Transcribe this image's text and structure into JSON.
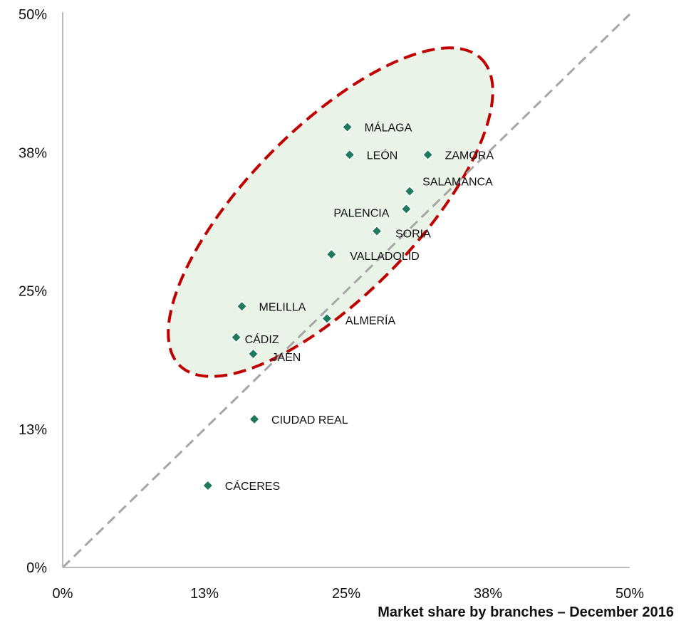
{
  "chart_data": {
    "type": "scatter",
    "title": "",
    "xlabel": "Market share by  branches – December  2016",
    "ylabel": "",
    "xlim": [
      0,
      0.5
    ],
    "ylim": [
      0,
      0.5
    ],
    "x_ticks": [
      "0%",
      "13%",
      "25%",
      "38%",
      "50%"
    ],
    "y_ticks": [
      "0%",
      "13%",
      "25%",
      "38%",
      "50%"
    ],
    "grid": false,
    "legend": "none",
    "reference_line": {
      "from": [
        0,
        0
      ],
      "to": [
        0.5,
        0.5
      ],
      "style": "dashed",
      "color": "#a6a6a6"
    },
    "highlight_ellipse": {
      "fill": "#e9f3e8",
      "stroke": "#c00000",
      "style": "dashed"
    },
    "marker_color": "#1e7a5a",
    "points": [
      {
        "label": "MÁLAGA",
        "x": 0.251,
        "y": 0.398
      },
      {
        "label": "LEÓN",
        "x": 0.253,
        "y": 0.373
      },
      {
        "label": "ZAMORA",
        "x": 0.322,
        "y": 0.373
      },
      {
        "label": "SALAMANCA",
        "x": 0.306,
        "y": 0.34
      },
      {
        "label": "PALENCIA",
        "x": 0.303,
        "y": 0.324
      },
      {
        "label": "SORIA",
        "x": 0.277,
        "y": 0.304
      },
      {
        "label": "VALLADOLID",
        "x": 0.237,
        "y": 0.283
      },
      {
        "label": "MELILLA",
        "x": 0.158,
        "y": 0.236
      },
      {
        "label": "ALMERÍA",
        "x": 0.233,
        "y": 0.225
      },
      {
        "label": "CÁDIZ",
        "x": 0.153,
        "y": 0.208
      },
      {
        "label": "JAÉN",
        "x": 0.168,
        "y": 0.193
      },
      {
        "label": "CIUDAD REAL",
        "x": 0.169,
        "y": 0.134
      },
      {
        "label": "CÁCERES",
        "x": 0.128,
        "y": 0.074
      }
    ]
  }
}
